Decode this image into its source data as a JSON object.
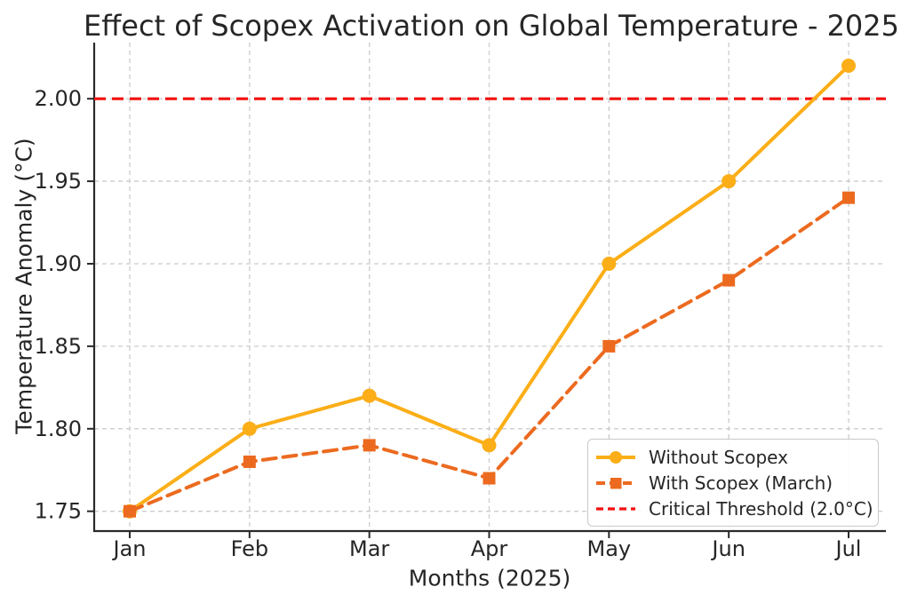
{
  "chart_data": {
    "type": "line",
    "title": "Effect of Scopex Activation on Global Temperature - 2025",
    "xlabel": "Months (2025)",
    "ylabel": "Temperature Anomaly (°C)",
    "categories": [
      "Jan",
      "Feb",
      "Mar",
      "Apr",
      "May",
      "Jun",
      "Jul"
    ],
    "series": [
      {
        "name": "Without Scopex",
        "color": "#FBAE17",
        "line_style": "solid",
        "marker": "circle",
        "values": [
          1.75,
          1.8,
          1.82,
          1.79,
          1.9,
          1.95,
          2.02
        ]
      },
      {
        "name": "With Scopex (March)",
        "color": "#EC6A1F",
        "line_style": "dashed",
        "marker": "square",
        "values": [
          1.75,
          1.78,
          1.79,
          1.77,
          1.85,
          1.89,
          1.94
        ]
      }
    ],
    "threshold": {
      "name": "Critical Threshold (2.0°C)",
      "value": 2.0,
      "color": "#F40E0E",
      "line_style": "dashed"
    },
    "y_ticks": [
      1.75,
      1.8,
      1.85,
      1.9,
      1.95,
      2.0
    ],
    "ylim": [
      1.738,
      2.034
    ],
    "grid": true,
    "grid_style": "dashed",
    "legend_position": "lower right"
  }
}
